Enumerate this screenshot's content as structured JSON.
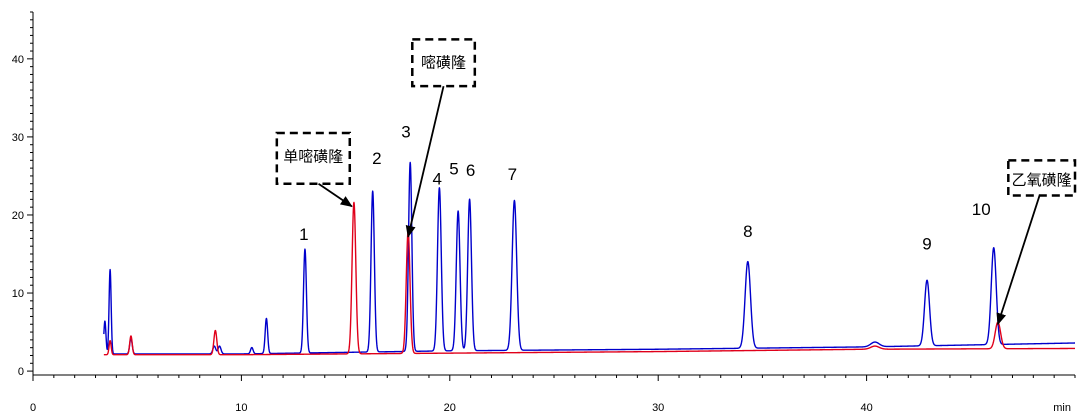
{
  "chart_data": {
    "type": "line",
    "xlabel": "min",
    "ylabel": "",
    "xlim": [
      0,
      50
    ],
    "ylim": [
      -0.5,
      46
    ],
    "x_ticks": [
      0,
      10,
      20,
      30,
      40
    ],
    "y_ticks": [
      0,
      10,
      20,
      30,
      40
    ],
    "grid": false,
    "legend": "none",
    "series": [
      {
        "color": "#0000cc",
        "baseline": [
          [
            3.4,
            2.2
          ],
          [
            10,
            2.2
          ],
          [
            20,
            2.6
          ],
          [
            30,
            2.8
          ],
          [
            40,
            3.1
          ],
          [
            50,
            3.6
          ]
        ],
        "peaks": [
          {
            "x": 3.45,
            "h": 4.2,
            "w": 0.05
          },
          {
            "x": 3.7,
            "h": 10.8,
            "w": 0.05
          },
          {
            "x": 4.7,
            "h": 2.0,
            "w": 0.06
          },
          {
            "x": 8.7,
            "h": 1.0,
            "w": 0.07
          },
          {
            "x": 8.95,
            "h": 1.0,
            "w": 0.07
          },
          {
            "x": 10.5,
            "h": 0.8,
            "w": 0.06
          },
          {
            "x": 11.2,
            "h": 4.5,
            "w": 0.06
          },
          {
            "x": 13.05,
            "h": 13.3,
            "w": 0.07
          },
          {
            "x": 16.3,
            "h": 20.6,
            "w": 0.08
          },
          {
            "x": 18.1,
            "h": 24.2,
            "w": 0.08
          },
          {
            "x": 19.5,
            "h": 20.9,
            "w": 0.09
          },
          {
            "x": 20.4,
            "h": 17.9,
            "w": 0.09
          },
          {
            "x": 20.95,
            "h": 19.4,
            "w": 0.09
          },
          {
            "x": 23.1,
            "h": 19.2,
            "w": 0.11
          },
          {
            "x": 34.3,
            "h": 11.1,
            "w": 0.13
          },
          {
            "x": 40.4,
            "h": 0.6,
            "w": 0.2
          },
          {
            "x": 42.9,
            "h": 8.4,
            "w": 0.12
          },
          {
            "x": 46.1,
            "h": 12.4,
            "w": 0.12
          }
        ]
      },
      {
        "color": "#e0001a",
        "baseline": [
          [
            3.4,
            2.1
          ],
          [
            10,
            2.1
          ],
          [
            20,
            2.3
          ],
          [
            30,
            2.5
          ],
          [
            40,
            2.8
          ],
          [
            50,
            2.9
          ]
        ],
        "peaks": [
          {
            "x": 3.7,
            "h": 1.8,
            "w": 0.05
          },
          {
            "x": 4.7,
            "h": 2.4,
            "w": 0.06
          },
          {
            "x": 8.75,
            "h": 3.1,
            "w": 0.07
          },
          {
            "x": 15.4,
            "h": 19.4,
            "w": 0.09
          },
          {
            "x": 18.0,
            "h": 15.6,
            "w": 0.09
          },
          {
            "x": 40.4,
            "h": 0.4,
            "w": 0.2
          },
          {
            "x": 46.3,
            "h": 3.4,
            "w": 0.13
          }
        ]
      }
    ],
    "peak_labels": [
      {
        "text": "1",
        "x": 13.0,
        "y": 16.8
      },
      {
        "text": "2",
        "x": 16.5,
        "y": 26.5
      },
      {
        "text": "3",
        "x": 17.9,
        "y": 29.9
      },
      {
        "text": "4",
        "x": 19.4,
        "y": 23.9
      },
      {
        "text": "5",
        "x": 20.2,
        "y": 25.2
      },
      {
        "text": "6",
        "x": 21.0,
        "y": 25.0
      },
      {
        "text": "7",
        "x": 23.0,
        "y": 24.5
      },
      {
        "text": "8",
        "x": 34.3,
        "y": 17.2
      },
      {
        "text": "9",
        "x": 42.9,
        "y": 15.6
      },
      {
        "text": "10",
        "x": 45.5,
        "y": 20.0
      }
    ],
    "annotations": [
      {
        "text": "单嘧磺隆",
        "box_x": [
          11.7,
          15.2
        ],
        "box_y": [
          24.0,
          30.5
        ],
        "text_at": [
          13.45,
          27.5
        ],
        "arrow_from": [
          13.7,
          24.0
        ],
        "arrow_to": [
          15.3,
          21.1
        ]
      },
      {
        "text": "嘧磺隆",
        "box_x": [
          18.2,
          21.2
        ],
        "box_y": [
          36.5,
          42.5
        ],
        "text_at": [
          19.7,
          39.5
        ],
        "arrow_from": [
          19.7,
          36.5
        ],
        "arrow_to": [
          18.0,
          17.2
        ]
      },
      {
        "text": "乙氧磺隆",
        "box_x": [
          46.8,
          50.0
        ],
        "box_y": [
          22.5,
          27.0
        ],
        "text_at": [
          48.4,
          24.5
        ],
        "arrow_from": [
          48.3,
          22.5
        ],
        "arrow_to": [
          46.3,
          6.0
        ]
      }
    ]
  }
}
